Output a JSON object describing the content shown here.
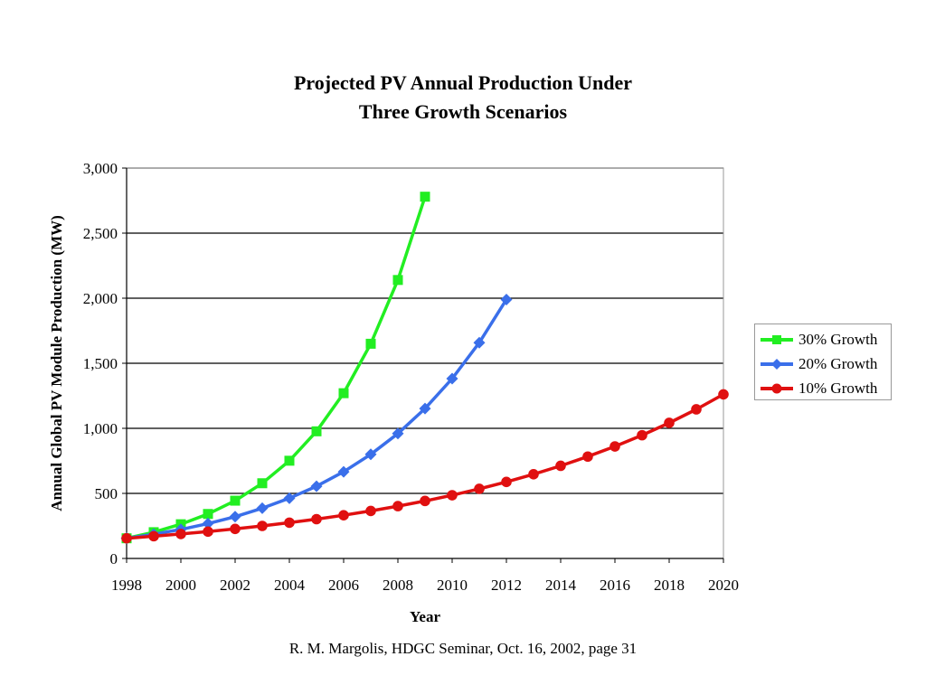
{
  "chart_data": {
    "type": "line",
    "title": [
      "Projected PV Annual Production Under",
      "Three Growth Scenarios"
    ],
    "xlabel": "Year",
    "ylabel": "Annual Global PV Module Production (MW)",
    "xlim": [
      1998,
      2020
    ],
    "ylim": [
      0,
      3000
    ],
    "x_ticks": [
      "1998",
      "2000",
      "2002",
      "2004",
      "2006",
      "2008",
      "2010",
      "2012",
      "2014",
      "2016",
      "2018",
      "2020"
    ],
    "y_ticks": [
      "0",
      "500",
      "1,000",
      "1,500",
      "2,000",
      "2,500",
      "3,000"
    ],
    "grid": "horizontal",
    "legend_position": "right",
    "series": [
      {
        "name": "30% Growth",
        "color": "#22ee22",
        "marker": "square",
        "x": [
          1998,
          1999,
          2000,
          2001,
          2002,
          2003,
          2004,
          2005,
          2006,
          2007,
          2008,
          2009
        ],
        "values": [
          155,
          202,
          263,
          342,
          444,
          578,
          751,
          977,
          1270,
          1650,
          2140,
          2780
        ]
      },
      {
        "name": "20% Growth",
        "color": "#3a6fea",
        "marker": "diamond",
        "x": [
          1998,
          1999,
          2000,
          2001,
          2002,
          2003,
          2004,
          2005,
          2006,
          2007,
          2008,
          2009,
          2010,
          2011,
          2012
        ],
        "values": [
          155,
          186,
          223,
          268,
          321,
          386,
          463,
          555,
          666,
          800,
          960,
          1152,
          1382,
          1658,
          1990
        ]
      },
      {
        "name": "10% Growth",
        "color": "#e01010",
        "marker": "circle",
        "x": [
          1998,
          1999,
          2000,
          2001,
          2002,
          2003,
          2004,
          2005,
          2006,
          2007,
          2008,
          2009,
          2010,
          2011,
          2012,
          2013,
          2014,
          2015,
          2016,
          2017,
          2018,
          2019,
          2020
        ],
        "values": [
          155,
          171,
          188,
          206,
          227,
          250,
          275,
          302,
          332,
          365,
          402,
          442,
          486,
          535,
          588,
          647,
          712,
          783,
          861,
          947,
          1042,
          1146,
          1261
        ]
      }
    ]
  },
  "footer": "R. M. Margolis, HDGC Seminar, Oct. 16, 2002, page 31"
}
